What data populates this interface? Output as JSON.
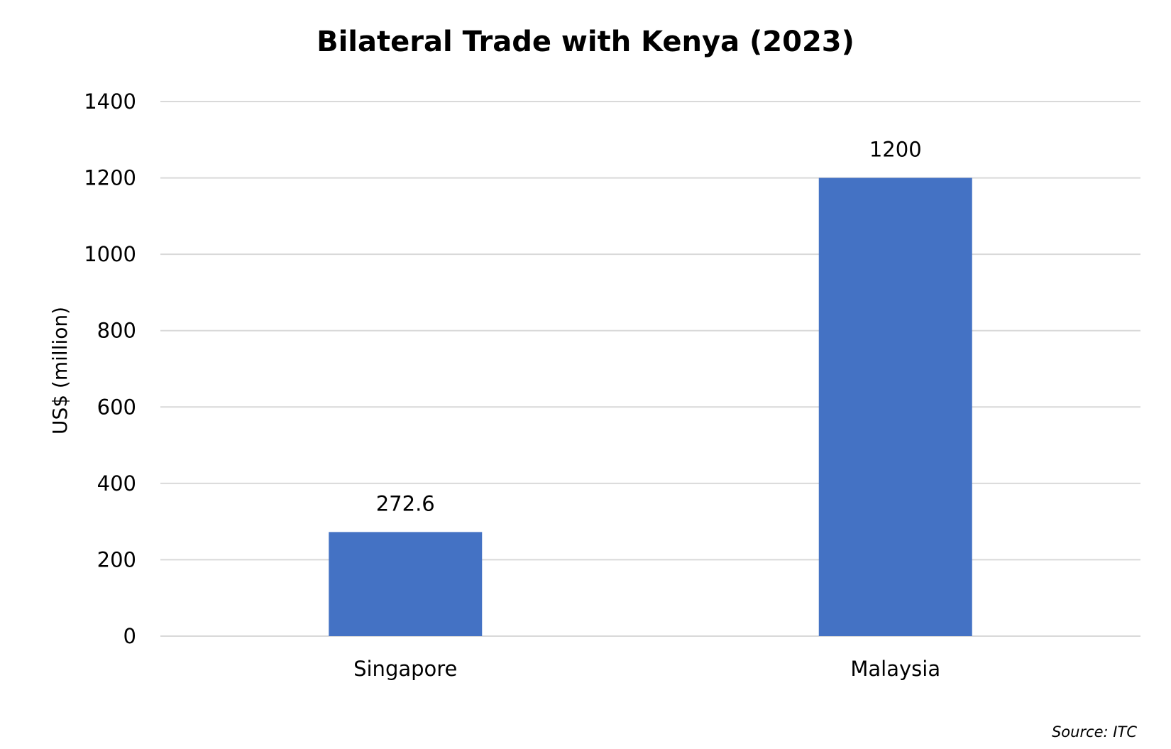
{
  "chart_data": {
    "type": "bar",
    "title": "Bilateral Trade with Kenya (2023)",
    "xlabel": "",
    "ylabel": "US$ (million)",
    "categories": [
      "Singapore",
      "Malaysia"
    ],
    "values": [
      272.6,
      1200
    ],
    "data_labels": [
      "272.6",
      "1200"
    ],
    "ylim": [
      0,
      1400
    ],
    "yticks": [
      0,
      200,
      400,
      600,
      800,
      1000,
      1200,
      1400
    ],
    "grid": true,
    "legend": "none",
    "bar_color": "#4472c4",
    "gridline_color": "#d9d9d9"
  },
  "source_note": "Source: ITC"
}
